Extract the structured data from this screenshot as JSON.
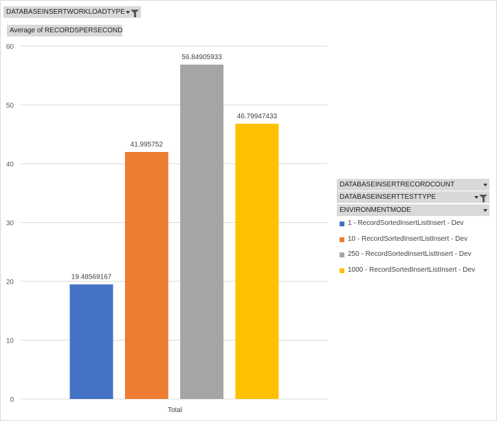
{
  "filter_field": {
    "label": "DATABASEINSERTWORKLOADTYPE",
    "icons": [
      "chevron-down-icon",
      "funnel-icon"
    ]
  },
  "value_field": {
    "label": "Average of RECORDSPERSECOND"
  },
  "legend_fields": [
    {
      "label": "DATABASEINSERTRECORDCOUNT",
      "icon": "chevron-down-icon"
    },
    {
      "label": "DATABASEINSERTTESTTYPE",
      "icon": "funnel-icon"
    },
    {
      "label": "ENVIRONMENTMODE",
      "icon": "chevron-down-icon"
    }
  ],
  "chart_data": {
    "type": "bar",
    "categories": [
      "Total"
    ],
    "series": [
      {
        "name": "1 - RecordSortedInsertListInsert - Dev",
        "values": [
          19.48569167
        ],
        "label": "19.48569167",
        "color": "#4472c4"
      },
      {
        "name": "10 - RecordSortedInsertListInsert - Dev",
        "values": [
          41.995752
        ],
        "label": "41.995752",
        "color": "#ed7d31"
      },
      {
        "name": "250 - RecordSortedInsertListInsert - Dev",
        "values": [
          56.84905933
        ],
        "label": "56.84905933",
        "color": "#a5a5a5"
      },
      {
        "name": "1000 - RecordSortedInsertListInsert - Dev",
        "values": [
          46.79947433
        ],
        "label": "46.79947433",
        "color": "#ffc000"
      }
    ],
    "ylim": [
      0,
      60
    ],
    "yticks": [
      "0",
      "10",
      "20",
      "30",
      "40",
      "50",
      "60"
    ],
    "grid": true,
    "legend_position": "right"
  }
}
